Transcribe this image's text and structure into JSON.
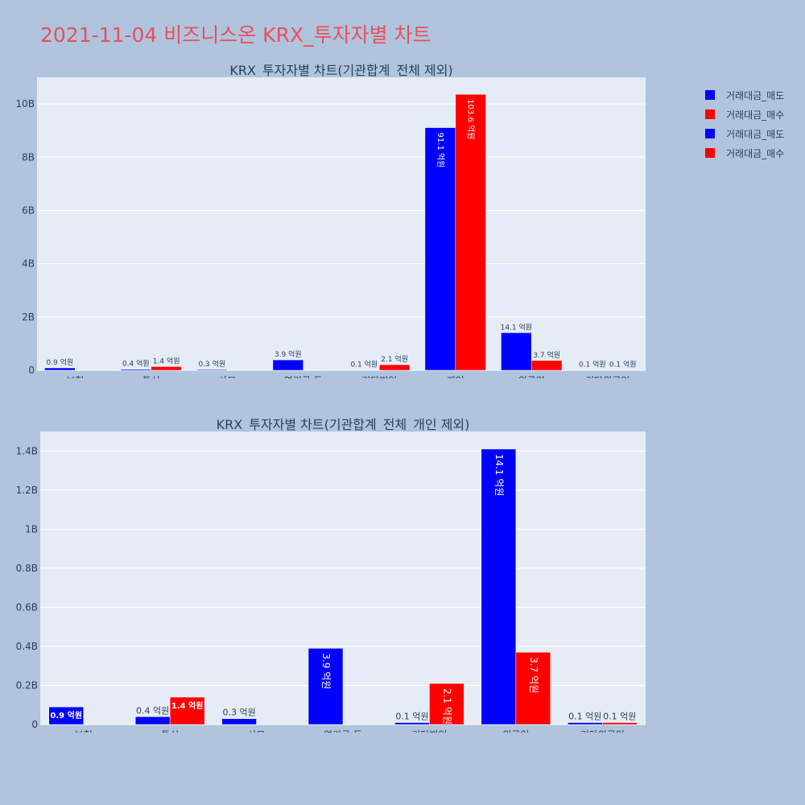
{
  "page": {
    "title": "2021-11-04 비즈니스온 KRX_투자자별 차트"
  },
  "colors": {
    "sell": "#0000ff",
    "buy": "#ff0000",
    "plot_bg": "#e5ecf6",
    "page_bg": "#b0c4de",
    "grid": "#ffffff",
    "text": "#2a3f5f"
  },
  "legend": [
    {
      "label": "거래대금_매도",
      "color": "#0000ff"
    },
    {
      "label": "거래대금_매수",
      "color": "#ff0000"
    },
    {
      "label": "거래대금_매도",
      "color": "#0000ff"
    },
    {
      "label": "거래대금_매수",
      "color": "#ff0000"
    }
  ],
  "chart_data": [
    {
      "type": "bar",
      "title": "KRX_투자자별 차트(기관합계_전체 제외)",
      "categories": [
        "보험",
        "투신",
        "사모",
        "연기금 등",
        "기타법인",
        "개인",
        "외국인",
        "기타외국인"
      ],
      "series": [
        {
          "name": "거래대금_매도",
          "color": "#0000ff",
          "values": [
            90000000,
            40000000,
            30000000,
            390000000,
            10000000,
            9110000000,
            1410000000,
            10000000
          ],
          "labels": [
            "0.9 억원",
            "0.4 억원",
            "0.3 억원",
            "3.9 억원",
            "0.1 억원",
            "91.1 억원",
            "14.1 억원",
            "0.1 억원"
          ]
        },
        {
          "name": "거래대금_매수",
          "color": "#ff0000",
          "values": [
            0,
            140000000,
            0,
            0,
            210000000,
            10360000000,
            370000000,
            10000000
          ],
          "labels": [
            "",
            "1.4 억원",
            "",
            "",
            "2.1 억원",
            "103.6 억원",
            "3.7 억원",
            "0.1 억원"
          ]
        }
      ],
      "ylim": [
        0,
        11000000000
      ],
      "yticks": [
        0,
        2000000000,
        4000000000,
        6000000000,
        8000000000,
        10000000000
      ],
      "ytick_labels": [
        "0",
        "2B",
        "4B",
        "6B",
        "8B",
        "10B"
      ],
      "grid": true
    },
    {
      "type": "bar",
      "title": "KRX_투자자별 차트(기관합계_전체_개인 제외)",
      "categories": [
        "보험",
        "투신",
        "사모",
        "연기금 등",
        "기타법인",
        "외국인",
        "기타외국인"
      ],
      "series": [
        {
          "name": "거래대금_매도",
          "color": "#0000ff",
          "values": [
            90000000,
            40000000,
            30000000,
            390000000,
            10000000,
            1410000000,
            10000000
          ],
          "labels": [
            "0.9 억원",
            "0.4 억원",
            "0.3 억원",
            "3.9 억원",
            "0.1 억원",
            "14.1 억원",
            "0.1 억원"
          ]
        },
        {
          "name": "거래대금_매수",
          "color": "#ff0000",
          "values": [
            0,
            140000000,
            0,
            0,
            210000000,
            370000000,
            10000000
          ],
          "labels": [
            "",
            "1.4 억원",
            "",
            "",
            "2.1 억원",
            "3.7 억원",
            "0.1 억원"
          ]
        }
      ],
      "ylim": [
        0,
        1500000000
      ],
      "yticks": [
        0,
        200000000,
        400000000,
        600000000,
        800000000,
        1000000000,
        1200000000,
        1400000000
      ],
      "ytick_labels": [
        "0",
        "0.2B",
        "0.4B",
        "0.6B",
        "0.8B",
        "1B",
        "1.2B",
        "1.4B"
      ],
      "grid": true
    }
  ]
}
